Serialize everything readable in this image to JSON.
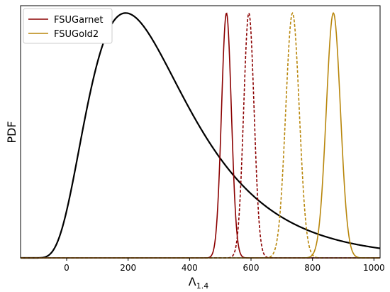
{
  "chart_data": {
    "type": "line",
    "title": "",
    "xlabel": "Λ",
    "xlabel_sub": "1.4",
    "ylabel": "PDF",
    "xlim": [
      -150,
      1020
    ],
    "ylim": [
      0,
      1.03
    ],
    "x_ticks": [
      0,
      200,
      400,
      600,
      800,
      1000
    ],
    "x_tick_labels": [
      "0",
      "200",
      "400",
      "600",
      "800",
      "1000"
    ],
    "y_ticks_shown": false,
    "grid": false,
    "legend_placement": "top-left",
    "legend": [
      {
        "label": "FSUGarnet",
        "color": "#8b0000"
      },
      {
        "label": "FSUGold2",
        "color": "#b8860b"
      }
    ],
    "series": [
      {
        "color": "#000000",
        "style": "solid",
        "distribution": "lognormal",
        "mode": 192,
        "sigma": 0.5,
        "peak": 1.0
      },
      {
        "color": "#8b0000",
        "style": "solid",
        "distribution": "gaussian",
        "mean": 520,
        "std": 16,
        "peak": 1.0
      },
      {
        "color": "#8b0000",
        "style": "dashed",
        "distribution": "gaussian",
        "mean": 593,
        "std": 17,
        "peak": 1.0
      },
      {
        "color": "#b8860b",
        "style": "dashed",
        "distribution": "gaussian",
        "mean": 735,
        "std": 22,
        "peak": 1.0
      },
      {
        "color": "#b8860b",
        "style": "solid",
        "distribution": "gaussian",
        "mean": 868,
        "std": 23,
        "peak": 1.0
      }
    ]
  }
}
